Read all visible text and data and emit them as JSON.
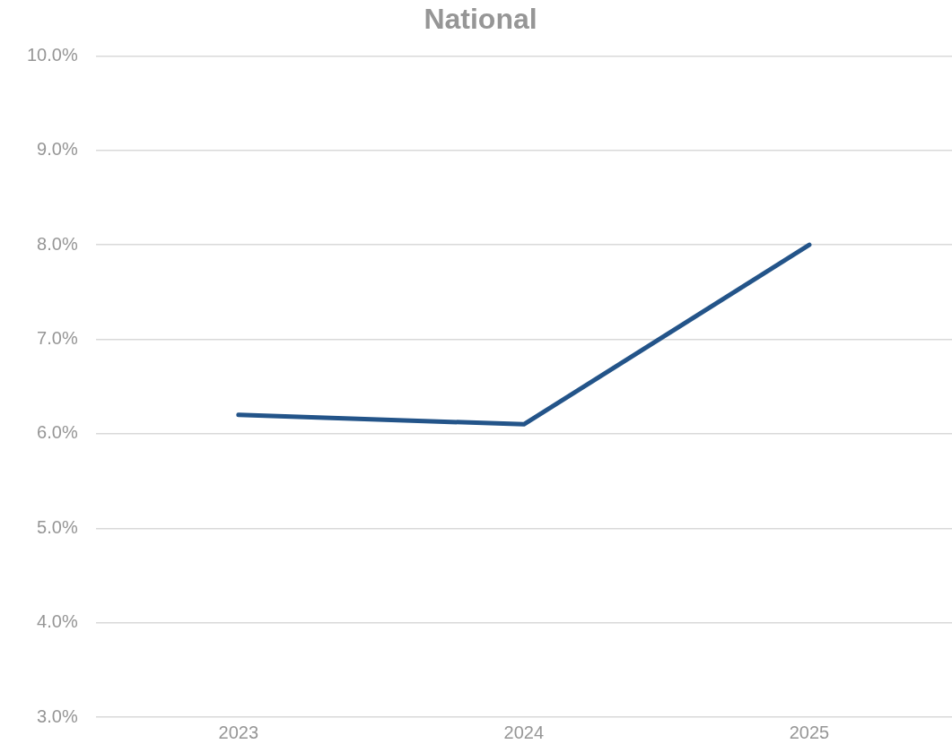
{
  "chart_data": {
    "type": "line",
    "title": "National",
    "categories": [
      "2023",
      "2024",
      "2025"
    ],
    "series": [
      {
        "color": "#235489",
        "values": [
          6.2,
          6.1,
          8.0
        ]
      }
    ],
    "ylim": [
      3,
      10
    ],
    "yticks": [
      {
        "value": 3,
        "label": "3.0%"
      },
      {
        "value": 4,
        "label": "4.0%"
      },
      {
        "value": 5,
        "label": "5.0%"
      },
      {
        "value": 6,
        "label": "6.0%"
      },
      {
        "value": 7,
        "label": "7.0%"
      },
      {
        "value": 8,
        "label": "8.0%"
      },
      {
        "value": 9,
        "label": "9.0%"
      },
      {
        "value": 10,
        "label": "10.0%"
      }
    ],
    "grid": "y",
    "legend": false,
    "marker": "none",
    "line_style": "solid"
  }
}
